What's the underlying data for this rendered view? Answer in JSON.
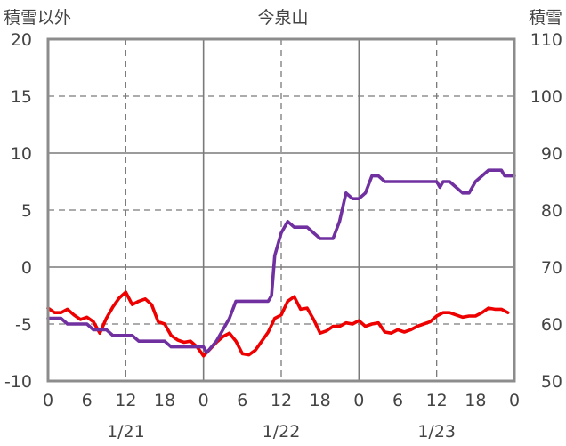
{
  "chart_data": {
    "type": "line",
    "title": "今泉山",
    "y_left_label": "積雪以外",
    "y_right_label": "積雪",
    "y_left": {
      "min": -10,
      "max": 20,
      "ticks": [
        -10,
        -5,
        0,
        5,
        10,
        15,
        20
      ],
      "tick_labels": [
        "-10",
        "-5",
        "0",
        "5",
        "10",
        "15",
        "20"
      ]
    },
    "y_right": {
      "min": 50,
      "max": 110,
      "ticks": [
        50,
        60,
        70,
        80,
        90,
        100,
        110
      ],
      "tick_labels": [
        "50",
        "60",
        "70",
        "80",
        "90",
        "100",
        "110"
      ]
    },
    "x_range": [
      0,
      72
    ],
    "x_ticks": [
      0,
      6,
      12,
      18,
      24,
      30,
      36,
      42,
      48,
      54,
      60,
      66,
      72
    ],
    "x_tick_labels": [
      "0",
      "6",
      "12",
      "18",
      "0",
      "6",
      "12",
      "18",
      "0",
      "6",
      "12",
      "18",
      "0"
    ],
    "day_labels": [
      {
        "text": "1/21",
        "x": 12
      },
      {
        "text": "1/22",
        "x": 36
      },
      {
        "text": "1/23",
        "x": 60
      }
    ],
    "day_separators": [
      24,
      48
    ],
    "grid_dashed_x": [
      12,
      36,
      60
    ],
    "grid_dashed_y": [
      -5,
      5,
      15
    ],
    "grid_solid_y": [
      0,
      10
    ],
    "series": [
      {
        "axis": "left",
        "color": "#ee0000",
        "points": [
          [
            0,
            -3.6
          ],
          [
            1,
            -4.0
          ],
          [
            2,
            -4.0
          ],
          [
            3,
            -3.7
          ],
          [
            4,
            -4.2
          ],
          [
            5,
            -4.6
          ],
          [
            6,
            -4.4
          ],
          [
            7,
            -4.8
          ],
          [
            8,
            -5.8
          ],
          [
            9,
            -4.5
          ],
          [
            10,
            -3.5
          ],
          [
            11,
            -2.7
          ],
          [
            12,
            -2.2
          ],
          [
            13,
            -3.3
          ],
          [
            14,
            -3.0
          ],
          [
            15,
            -2.8
          ],
          [
            16,
            -3.3
          ],
          [
            17,
            -4.8
          ],
          [
            18,
            -5.0
          ],
          [
            19,
            -6.0
          ],
          [
            20,
            -6.4
          ],
          [
            21,
            -6.6
          ],
          [
            22,
            -6.5
          ],
          [
            23,
            -7.0
          ],
          [
            24,
            -7.8
          ],
          [
            25,
            -7.2
          ],
          [
            26,
            -6.6
          ],
          [
            27,
            -6.1
          ],
          [
            28,
            -5.8
          ],
          [
            29,
            -6.5
          ],
          [
            30,
            -7.6
          ],
          [
            31,
            -7.7
          ],
          [
            32,
            -7.3
          ],
          [
            33,
            -6.5
          ],
          [
            34,
            -5.7
          ],
          [
            35,
            -4.5
          ],
          [
            36,
            -4.2
          ],
          [
            37,
            -3.0
          ],
          [
            38,
            -2.6
          ],
          [
            39,
            -3.7
          ],
          [
            40,
            -3.6
          ],
          [
            41,
            -4.6
          ],
          [
            42,
            -5.8
          ],
          [
            43,
            -5.6
          ],
          [
            44,
            -5.2
          ],
          [
            45,
            -5.2
          ],
          [
            46,
            -4.9
          ],
          [
            47,
            -5.0
          ],
          [
            48,
            -4.7
          ],
          [
            49,
            -5.2
          ],
          [
            50,
            -5.0
          ],
          [
            51,
            -4.9
          ],
          [
            52,
            -5.7
          ],
          [
            53,
            -5.8
          ],
          [
            54,
            -5.5
          ],
          [
            55,
            -5.7
          ],
          [
            56,
            -5.5
          ],
          [
            57,
            -5.2
          ],
          [
            58,
            -5.0
          ],
          [
            59,
            -4.8
          ],
          [
            60,
            -4.3
          ],
          [
            61,
            -4.0
          ],
          [
            62,
            -4.0
          ],
          [
            63,
            -4.2
          ],
          [
            64,
            -4.4
          ],
          [
            65,
            -4.3
          ],
          [
            66,
            -4.3
          ],
          [
            67,
            -4.0
          ],
          [
            68,
            -3.6
          ],
          [
            69,
            -3.7
          ],
          [
            70,
            -3.7
          ],
          [
            71,
            -4.0
          ]
        ]
      },
      {
        "axis": "right",
        "color": "#7030a0",
        "points": [
          [
            0,
            61
          ],
          [
            2,
            61
          ],
          [
            3,
            60
          ],
          [
            6,
            60
          ],
          [
            7,
            59
          ],
          [
            9,
            59
          ],
          [
            10,
            58
          ],
          [
            13,
            58
          ],
          [
            14,
            57
          ],
          [
            18,
            57
          ],
          [
            19,
            56
          ],
          [
            24,
            56
          ],
          [
            24.5,
            55
          ],
          [
            26,
            57
          ],
          [
            28,
            61
          ],
          [
            29,
            64
          ],
          [
            34,
            64
          ],
          [
            34.5,
            65
          ],
          [
            35,
            72
          ],
          [
            36,
            76
          ],
          [
            37,
            78
          ],
          [
            38,
            77
          ],
          [
            40,
            77
          ],
          [
            41,
            76
          ],
          [
            42,
            75
          ],
          [
            44,
            75
          ],
          [
            45,
            78
          ],
          [
            46,
            83
          ],
          [
            47,
            82
          ],
          [
            48,
            82
          ],
          [
            49,
            83
          ],
          [
            50,
            86
          ],
          [
            51,
            86
          ],
          [
            52,
            85
          ],
          [
            60,
            85
          ],
          [
            60.5,
            84
          ],
          [
            61,
            85
          ],
          [
            62,
            85
          ],
          [
            63,
            84
          ],
          [
            64,
            83
          ],
          [
            65,
            83
          ],
          [
            66,
            85
          ],
          [
            67,
            86
          ],
          [
            68,
            87
          ],
          [
            70,
            87
          ],
          [
            70.5,
            86
          ],
          [
            72,
            86
          ]
        ]
      }
    ]
  }
}
